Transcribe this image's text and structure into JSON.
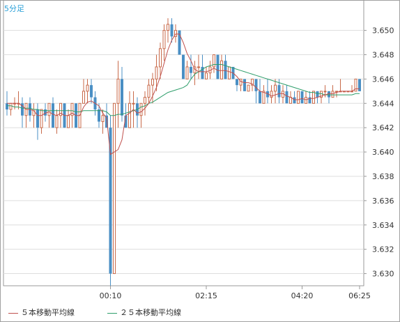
{
  "timeframe_label": "5分足",
  "legend": [
    {
      "label": "５本移動平均線",
      "color": "#c0504d"
    },
    {
      "label": "２５本移動平均線",
      "color": "#2e9e6b"
    }
  ],
  "colors": {
    "up_candle": "#c86a4a",
    "down_candle": "#4a8fc4",
    "grid": "#dddddd",
    "axis": "#999999"
  },
  "chart_data": {
    "type": "candlestick",
    "title": "",
    "y_ticks": [
      "3.630",
      "3.632",
      "3.634",
      "3.636",
      "3.638",
      "3.640",
      "3.642",
      "3.644",
      "3.646",
      "3.648",
      "3.650"
    ],
    "x_ticks": [
      "00:10",
      "02:15",
      "04:20",
      "06:25"
    ],
    "ylim": [
      3.629,
      3.6525
    ],
    "grid": true,
    "legend_position": "bottom-left",
    "ohlc": [
      [
        3.644,
        3.645,
        3.643,
        3.6435
      ],
      [
        3.6435,
        3.644,
        3.643,
        3.644
      ],
      [
        3.644,
        3.6445,
        3.6435,
        3.644
      ],
      [
        3.644,
        3.645,
        3.6435,
        3.644
      ],
      [
        3.644,
        3.6445,
        3.642,
        3.643
      ],
      [
        3.643,
        3.644,
        3.642,
        3.644
      ],
      [
        3.644,
        3.6445,
        3.6425,
        3.643
      ],
      [
        3.643,
        3.644,
        3.642,
        3.6435
      ],
      [
        3.6435,
        3.644,
        3.641,
        3.642
      ],
      [
        3.642,
        3.6435,
        3.6415,
        3.6435
      ],
      [
        3.6435,
        3.644,
        3.6425,
        3.643
      ],
      [
        3.643,
        3.644,
        3.642,
        3.644
      ],
      [
        3.644,
        3.6445,
        3.642,
        3.642
      ],
      [
        3.642,
        3.6435,
        3.6415,
        3.643
      ],
      [
        3.643,
        3.644,
        3.642,
        3.644
      ],
      [
        3.644,
        3.644,
        3.642,
        3.642
      ],
      [
        3.642,
        3.6435,
        3.642,
        3.643
      ],
      [
        3.643,
        3.644,
        3.642,
        3.644
      ],
      [
        3.644,
        3.644,
        3.642,
        3.642
      ],
      [
        3.642,
        3.644,
        3.642,
        3.644
      ],
      [
        3.644,
        3.646,
        3.644,
        3.645
      ],
      [
        3.645,
        3.646,
        3.644,
        3.6455
      ],
      [
        3.6455,
        3.646,
        3.644,
        3.6445
      ],
      [
        3.6445,
        3.645,
        3.643,
        3.6435
      ],
      [
        3.6435,
        3.644,
        3.642,
        3.6425
      ],
      [
        3.6425,
        3.6435,
        3.6415,
        3.643
      ],
      [
        3.643,
        3.644,
        3.642,
        3.642
      ],
      [
        3.642,
        3.643,
        3.629,
        3.63
      ],
      [
        3.63,
        3.644,
        3.63,
        3.644
      ],
      [
        3.644,
        3.6475,
        3.642,
        3.646
      ],
      [
        3.646,
        3.647,
        3.6425,
        3.643
      ],
      [
        3.643,
        3.644,
        3.642,
        3.642
      ],
      [
        3.642,
        3.645,
        3.642,
        3.644
      ],
      [
        3.644,
        3.645,
        3.642,
        3.644
      ],
      [
        3.644,
        3.6445,
        3.642,
        3.643
      ],
      [
        3.643,
        3.644,
        3.642,
        3.644
      ],
      [
        3.644,
        3.645,
        3.643,
        3.6445
      ],
      [
        3.6445,
        3.646,
        3.644,
        3.6455
      ],
      [
        3.6455,
        3.6465,
        3.644,
        3.646
      ],
      [
        3.646,
        3.648,
        3.645,
        3.647
      ],
      [
        3.647,
        3.649,
        3.646,
        3.6485
      ],
      [
        3.6485,
        3.6505,
        3.6475,
        3.65
      ],
      [
        3.65,
        3.651,
        3.649,
        3.6505
      ],
      [
        3.6505,
        3.651,
        3.649,
        3.6495
      ],
      [
        3.6495,
        3.6505,
        3.649,
        3.65
      ],
      [
        3.65,
        3.65,
        3.648,
        3.648
      ],
      [
        3.648,
        3.648,
        3.646,
        3.646
      ],
      [
        3.646,
        3.6475,
        3.646,
        3.647
      ],
      [
        3.647,
        3.648,
        3.646,
        3.6465
      ],
      [
        3.6465,
        3.6475,
        3.6455,
        3.647
      ],
      [
        3.647,
        3.648,
        3.646,
        3.647
      ],
      [
        3.647,
        3.648,
        3.646,
        3.646
      ],
      [
        3.646,
        3.647,
        3.646,
        3.6465
      ],
      [
        3.6465,
        3.6475,
        3.646,
        3.647
      ],
      [
        3.647,
        3.648,
        3.6465,
        3.648
      ],
      [
        3.648,
        3.648,
        3.646,
        3.646
      ],
      [
        3.646,
        3.648,
        3.646,
        3.6475
      ],
      [
        3.6475,
        3.648,
        3.646,
        3.646
      ],
      [
        3.646,
        3.647,
        3.646,
        3.647
      ],
      [
        3.647,
        3.647,
        3.646,
        3.646
      ],
      [
        3.646,
        3.646,
        3.645,
        3.6455
      ],
      [
        3.6455,
        3.646,
        3.645,
        3.646
      ],
      [
        3.646,
        3.646,
        3.645,
        3.645
      ],
      [
        3.645,
        3.6455,
        3.645,
        3.6455
      ],
      [
        3.6455,
        3.646,
        3.645,
        3.646
      ],
      [
        3.646,
        3.646,
        3.644,
        3.645
      ],
      [
        3.645,
        3.646,
        3.644,
        3.644
      ],
      [
        3.644,
        3.6455,
        3.644,
        3.645
      ],
      [
        3.645,
        3.646,
        3.644,
        3.6445
      ],
      [
        3.6445,
        3.6455,
        3.644,
        3.645
      ],
      [
        3.645,
        3.646,
        3.644,
        3.6455
      ],
      [
        3.6455,
        3.646,
        3.644,
        3.6445
      ],
      [
        3.6445,
        3.6455,
        3.644,
        3.645
      ],
      [
        3.645,
        3.6455,
        3.644,
        3.644
      ],
      [
        3.644,
        3.645,
        3.644,
        3.6445
      ],
      [
        3.6445,
        3.645,
        3.644,
        3.644
      ],
      [
        3.644,
        3.645,
        3.644,
        3.645
      ],
      [
        3.645,
        3.645,
        3.644,
        3.644
      ],
      [
        3.644,
        3.645,
        3.644,
        3.6445
      ],
      [
        3.6445,
        3.645,
        3.644,
        3.644
      ],
      [
        3.644,
        3.645,
        3.644,
        3.645
      ],
      [
        3.645,
        3.645,
        3.644,
        3.6445
      ],
      [
        3.6445,
        3.645,
        3.644,
        3.645
      ],
      [
        3.645,
        3.6455,
        3.6445,
        3.645
      ],
      [
        3.645,
        3.645,
        3.644,
        3.6445
      ],
      [
        3.6445,
        3.6455,
        3.6445,
        3.645
      ],
      [
        3.645,
        3.645,
        3.6445,
        3.645
      ],
      [
        3.645,
        3.646,
        3.645,
        3.645
      ],
      [
        3.645,
        3.645,
        3.645,
        3.645
      ],
      [
        3.645,
        3.645,
        3.645,
        3.645
      ],
      [
        3.645,
        3.6455,
        3.645,
        3.645
      ],
      [
        3.645,
        3.646,
        3.645,
        3.646
      ],
      [
        3.646,
        3.646,
        3.645,
        3.645
      ]
    ],
    "ma5": [
      3.644,
      3.644,
      3.644,
      3.644,
      3.6438,
      3.6435,
      3.6435,
      3.6434,
      3.643,
      3.643,
      3.6432,
      3.6433,
      3.6431,
      3.643,
      3.6432,
      3.643,
      3.643,
      3.6432,
      3.643,
      3.643,
      3.6437,
      3.6441,
      3.6442,
      3.644,
      3.6438,
      3.6432,
      3.6428,
      3.6398,
      3.64,
      3.6402,
      3.641,
      3.643,
      3.6432,
      3.6435,
      3.6432,
      3.6433,
      3.6436,
      3.644,
      3.6446,
      3.6453,
      3.6462,
      3.6473,
      3.6484,
      3.6492,
      3.6497,
      3.6497,
      3.649,
      3.6481,
      3.6475,
      3.6468,
      3.6466,
      3.6466,
      3.6466,
      3.6467,
      3.6469,
      3.6467,
      3.6467,
      3.6467,
      3.6466,
      3.6465,
      3.6462,
      3.6458,
      3.6457,
      3.6457,
      3.6456,
      3.6453,
      3.645,
      3.6449,
      3.6448,
      3.6446,
      3.6447,
      3.6448,
      3.6448,
      3.6446,
      3.6445,
      3.6443,
      3.6443,
      3.6444,
      3.6443,
      3.6444,
      3.6444,
      3.6445,
      3.6446,
      3.6447,
      3.6448,
      3.6448,
      3.6449,
      3.645,
      3.645,
      3.645,
      3.645,
      3.6452,
      3.6452
    ],
    "ma25": [
      3.6438,
      3.6438,
      3.6437,
      3.6437,
      3.6436,
      3.6436,
      3.6436,
      3.6435,
      3.6435,
      3.6434,
      3.6434,
      3.6434,
      3.6434,
      3.6434,
      3.6434,
      3.6434,
      3.6434,
      3.6434,
      3.6433,
      3.6433,
      3.6434,
      3.6434,
      3.6434,
      3.6434,
      3.6434,
      3.6434,
      3.6433,
      3.643,
      3.643,
      3.6431,
      3.6431,
      3.6432,
      3.6433,
      3.6434,
      3.6435,
      3.6437,
      3.6438,
      3.644,
      3.6441,
      3.6443,
      3.6445,
      3.6447,
      3.6449,
      3.645,
      3.6451,
      3.6452,
      3.6453,
      3.6455,
      3.646,
      3.6464,
      3.6466,
      3.6468,
      3.647,
      3.6471,
      3.6472,
      3.6472,
      3.6472,
      3.6471,
      3.647,
      3.6469,
      3.6468,
      3.6467,
      3.6466,
      3.6465,
      3.6464,
      3.6463,
      3.6462,
      3.6461,
      3.646,
      3.6459,
      3.6458,
      3.6457,
      3.6456,
      3.6455,
      3.6454,
      3.6453,
      3.6452,
      3.6451,
      3.645,
      3.6449,
      3.6449,
      3.6448,
      3.6448,
      3.6447,
      3.6447,
      3.6447,
      3.6447,
      3.6447,
      3.6447,
      3.6447,
      3.6447,
      3.6448,
      3.6448
    ]
  }
}
